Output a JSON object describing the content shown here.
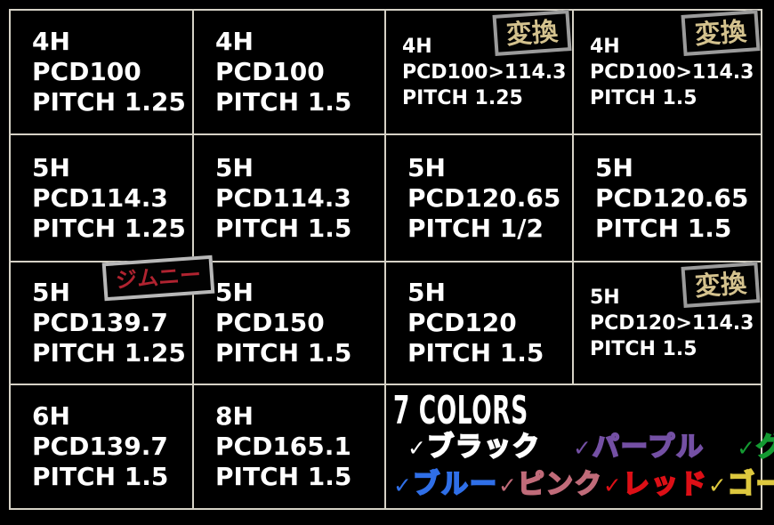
{
  "palette": {
    "background": "#000000",
    "grid_line": "#d6d2c6",
    "cell_text": "#ffffff",
    "convert_badge_text": "#d4c28e",
    "convert_badge_border": "#9b9b9b",
    "jimny_badge_text": "#b02330",
    "jimny_badge_border": "#b8b8b8"
  },
  "table": {
    "cells": [
      {
        "hole": "4H",
        "pcd": "PCD100",
        "pitch": "PITCH 1.25"
      },
      {
        "hole": "4H",
        "pcd": "PCD100",
        "pitch": "PITCH 1.5"
      },
      {
        "hole": "4H",
        "pcd": "PCD100>114.3",
        "pitch": "PITCH 1.25",
        "badge": "変換"
      },
      {
        "hole": "4H",
        "pcd": "PCD100>114.3",
        "pitch": "PITCH 1.5",
        "badge": "変換"
      },
      {
        "hole": "5H",
        "pcd": "PCD114.3",
        "pitch": "PITCH 1.25"
      },
      {
        "hole": "5H",
        "pcd": "PCD114.3",
        "pitch": "PITCH 1.5"
      },
      {
        "hole": "5H",
        "pcd": "PCD120.65",
        "pitch": "PITCH 1/2"
      },
      {
        "hole": "5H",
        "pcd": "PCD120.65",
        "pitch": "PITCH 1.5"
      },
      {
        "hole": "5H",
        "pcd": "PCD139.7",
        "pitch": "PITCH 1.25",
        "badge": "ジムニー"
      },
      {
        "hole": "5H",
        "pcd": "PCD150",
        "pitch": "PITCH 1.5"
      },
      {
        "hole": "5H",
        "pcd": "PCD120",
        "pitch": "PITCH 1.5"
      },
      {
        "hole": "5H",
        "pcd": "PCD120>114.3",
        "pitch": "PITCH 1.5",
        "badge": "変換"
      },
      {
        "hole": "6H",
        "pcd": "PCD139.7",
        "pitch": "PITCH 1.5"
      },
      {
        "hole": "8H",
        "pcd": "PCD165.1",
        "pitch": "PITCH 1.5"
      }
    ]
  },
  "colors_section": {
    "title": "7 COLORS",
    "checkmark": "✓",
    "row1": [
      {
        "label": "ブラック",
        "color": "#ffffff"
      },
      {
        "label": "パープル",
        "color": "#7450a4"
      },
      {
        "label": "グリーン",
        "color": "#149a32"
      }
    ],
    "row2": [
      {
        "label": "ブルー",
        "color": "#2f6fe8"
      },
      {
        "label": "ピンク",
        "color": "#c06b79"
      },
      {
        "label": "レッド",
        "color": "#dd0f16"
      },
      {
        "label": "ゴールド",
        "color": "#ddc83e"
      }
    ]
  }
}
